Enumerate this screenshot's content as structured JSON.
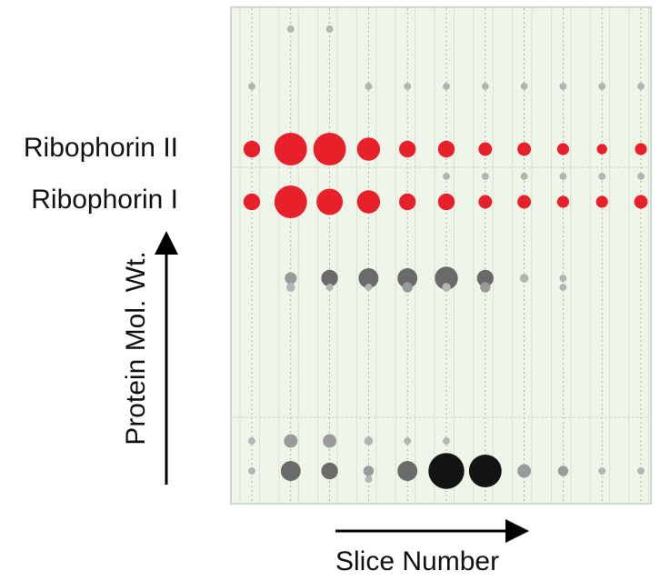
{
  "chart_data": {
    "type": "scatter",
    "subtype": "bubble matrix",
    "xlabel": "Slice Number",
    "ylabel": "Protein Mol. Wt.",
    "row_labels": [
      "Ribophorin II",
      "Ribophorin I"
    ],
    "x_columns": 11,
    "grid": true,
    "colors": {
      "highlight": "#e8202a",
      "gray_light": "#b4b4b4",
      "gray_mid": "#9a9a9a",
      "gray_dark": "#6a6a6a",
      "black": "#141414",
      "panel_background": "#eef6e9"
    },
    "rows": [
      {
        "label": "",
        "highlight": false,
        "values": [
          0,
          1,
          1,
          0,
          0,
          0,
          0,
          0,
          0,
          0,
          0
        ]
      },
      {
        "label": "",
        "highlight": false,
        "values": [
          1,
          0,
          0,
          1,
          1,
          1,
          1,
          1,
          1,
          1,
          1
        ]
      },
      {
        "label": "Ribophorin II",
        "highlight": true,
        "values": [
          4,
          9,
          9,
          6,
          4,
          4,
          3,
          3,
          2.5,
          2,
          2.5
        ]
      },
      {
        "label": "",
        "highlight": false,
        "values": [
          0,
          0,
          0,
          0,
          0,
          1,
          1,
          1,
          1,
          1,
          1
        ]
      },
      {
        "label": "Ribophorin I",
        "highlight": true,
        "values": [
          4,
          9,
          7,
          6,
          4,
          4,
          3,
          3,
          2.5,
          2.5,
          3
        ]
      },
      {
        "label": "",
        "highlight": false,
        "values": [
          0,
          2.5,
          4,
          5,
          5,
          6,
          4,
          1.5,
          1,
          0,
          0
        ]
      },
      {
        "label": "",
        "highlight": false,
        "values": [
          0,
          1.5,
          1,
          1,
          2,
          1.5,
          2,
          0,
          1,
          0,
          0
        ]
      },
      {
        "label": "",
        "highlight": false,
        "values": [
          1,
          3,
          3,
          1.5,
          1,
          1,
          0,
          0,
          0,
          0,
          0
        ]
      },
      {
        "label": "",
        "highlight": false,
        "values": [
          1,
          5,
          4,
          2,
          5,
          10,
          9,
          3,
          2,
          1,
          1
        ]
      },
      {
        "label": "",
        "highlight": false,
        "values": [
          0,
          0,
          0,
          1,
          0,
          0,
          0,
          0,
          0,
          0,
          0
        ]
      }
    ]
  }
}
